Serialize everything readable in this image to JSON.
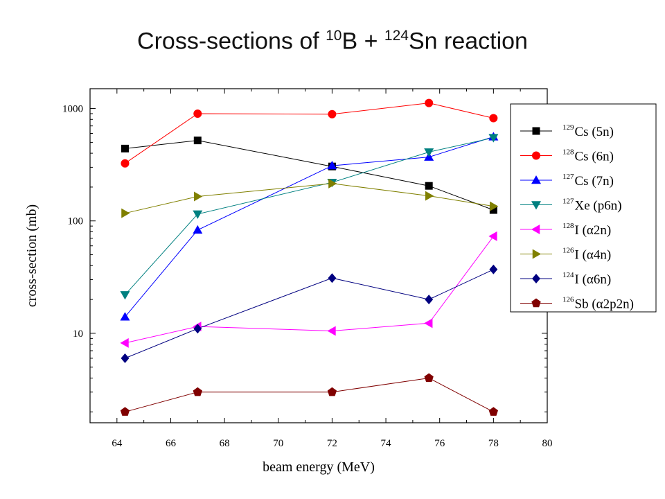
{
  "chart_data": {
    "type": "line",
    "title": {
      "prefix": "Cross-sections of ",
      "mass1": "10",
      "sym1": "B + ",
      "mass2": "124",
      "sym2": "Sn reaction"
    },
    "xlabel": "beam energy (MeV)",
    "ylabel": "cross-section (mb)",
    "xlim": [
      63,
      80
    ],
    "ylim": [
      1.6,
      1500
    ],
    "yscale": "log",
    "xticks": [
      64,
      66,
      68,
      70,
      72,
      74,
      76,
      78,
      80
    ],
    "yticks": [
      10,
      100,
      1000
    ],
    "legend_position": "top-right",
    "series": [
      {
        "mass": "129",
        "name": "Cs (5n)",
        "color": "#000000",
        "marker": "square",
        "x": [
          64.3,
          67,
          72,
          75.6,
          78
        ],
        "y": [
          440,
          520,
          305,
          205,
          125
        ]
      },
      {
        "mass": "128",
        "name": "Cs (6n)",
        "color": "#ff0000",
        "marker": "circle",
        "x": [
          64.3,
          67,
          72,
          75.6,
          78
        ],
        "y": [
          325,
          900,
          890,
          1120,
          820
        ]
      },
      {
        "mass": "127",
        "name": "Cs (7n)",
        "color": "#0000ff",
        "marker": "triangle-up",
        "x": [
          64.3,
          67,
          72,
          75.6,
          78
        ],
        "y": [
          14,
          83,
          310,
          370,
          560
        ]
      },
      {
        "mass": "127",
        "name": "Xe (p6n)",
        "color": "#008080",
        "marker": "triangle-down",
        "x": [
          64.3,
          67,
          72,
          75.6,
          78
        ],
        "y": [
          22,
          115,
          220,
          410,
          550
        ]
      },
      {
        "mass": "128",
        "name": "I (α2n)",
        "color": "#ff00ff",
        "marker": "triangle-left",
        "x": [
          64.3,
          67,
          72,
          75.6,
          78
        ],
        "y": [
          8.2,
          11.5,
          10.5,
          12.3,
          73
        ]
      },
      {
        "mass": "126",
        "name": "I (α4n)",
        "color": "#808000",
        "marker": "triangle-right",
        "x": [
          64.3,
          67,
          72,
          75.6,
          78
        ],
        "y": [
          117,
          165,
          215,
          167,
          135
        ]
      },
      {
        "mass": "124",
        "name": "I (α6n)",
        "color": "#000080",
        "marker": "diamond",
        "x": [
          64.3,
          67,
          72,
          75.6,
          78
        ],
        "y": [
          6,
          11,
          31,
          20,
          37
        ]
      },
      {
        "mass": "126",
        "name": "Sb (α2p2n)",
        "color": "#800000",
        "marker": "pentagon",
        "x": [
          64.3,
          67,
          72,
          75.6,
          78
        ],
        "y": [
          2,
          3,
          3,
          4,
          2
        ]
      }
    ]
  }
}
